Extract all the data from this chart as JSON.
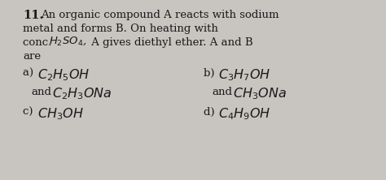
{
  "background_color": "#c8c4c0",
  "text_color": "#1a1a1a",
  "line1": "11. An organic compound A reacts with sodium",
  "line2": "metal and forms B. On heating with",
  "line3_pre": "conc. ",
  "line3_formula": "$H_2SO_4$,",
  "line3_post": " A gives diethyl ether. A and B",
  "line4": "are",
  "opt_a_pre": "a) ",
  "opt_a_f1": "$C_2H_5OH$",
  "opt_a_and": "   and ",
  "opt_a_f2": "$C_2H_3ONa$",
  "opt_b_pre": "b) ",
  "opt_b_f1": "$C_3H_7OH$",
  "opt_b_and": "   and ",
  "opt_b_f2": "$CH_3ONa$",
  "opt_c_pre": "c) ",
  "opt_c_f1": "$CH_3OH$",
  "opt_d_pre": "d) ",
  "opt_d_f1": "$C_4H_9OH$",
  "fs_body": 9.5,
  "fs_formula": 11.5,
  "fs_num": 10.5
}
